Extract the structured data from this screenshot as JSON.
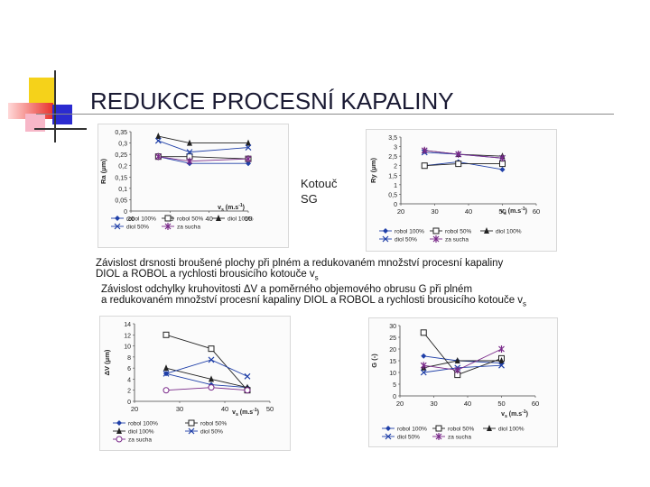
{
  "slide": {
    "title": "REDUKCE PROCESNÍ KAPALINY",
    "wheel_label_line1": "Kotouč",
    "wheel_label_line2": "SG",
    "caption1_line1": "Závislost drsnosti broušené plochy při plném a redukovaném množství procesní kapaliny",
    "caption1_line2_main": "DIOL a ROBOL a rychlosti brousicího kotouče v",
    "caption1_line2_sub": "s",
    "caption2_line1": "Závislost odchylky kruhovitosti ΔV a poměrného objemového obrusu G při plném",
    "caption2_line2_main": "a redukovaném množství procesní kapaliny DIOL a ROBOL a rychlosti brousicího kotouče v",
    "caption2_line2_sub": "s"
  },
  "colors": {
    "accent_yellow": "#f5d21a",
    "accent_red": "#e8322b",
    "accent_blue": "#2b2bd0",
    "accent_pink": "#f7b7c8",
    "series_blue": "#1f3fa8",
    "series_dark": "#222222",
    "series_purple": "#7a2a8a"
  },
  "chart_data": [
    {
      "type": "line",
      "ylabel": "Ra (μm)",
      "xlabel": "v",
      "xlabel_sub": "s",
      "xlabel_unit": " (m.s",
      "xlabel_sup": "-1",
      "xlabel_end": ")",
      "xlim": [
        20,
        50
      ],
      "ylim": [
        0,
        0.35
      ],
      "xticks": [
        "20",
        "30",
        "40",
        "50"
      ],
      "yticks": [
        "0",
        "0,05",
        "0,1",
        "0,15",
        "0,2",
        "0,25",
        "0,3",
        "0,35"
      ],
      "legend": [
        "robol 100%",
        "robol 50%",
        "diol 100%",
        "diol 50%",
        "za sucha"
      ],
      "series": [
        {
          "name": "robol 100%",
          "marker": "diamond",
          "x": [
            27,
            35,
            50
          ],
          "y": [
            0.24,
            0.21,
            0.21
          ]
        },
        {
          "name": "robol 50%",
          "marker": "square",
          "x": [
            27,
            35,
            50
          ],
          "y": [
            0.24,
            0.24,
            0.23
          ]
        },
        {
          "name": "diol 100%",
          "marker": "triangle",
          "x": [
            27,
            35,
            50
          ],
          "y": [
            0.33,
            0.3,
            0.3
          ]
        },
        {
          "name": "diol 50%",
          "marker": "x",
          "x": [
            27,
            35,
            50
          ],
          "y": [
            0.31,
            0.26,
            0.28
          ]
        },
        {
          "name": "za sucha",
          "marker": "star",
          "x": [
            27,
            35,
            50
          ],
          "y": [
            0.24,
            0.22,
            0.23
          ]
        }
      ]
    },
    {
      "type": "line",
      "ylabel": "Ry (μm)",
      "xlabel": "v",
      "xlabel_sub": "s",
      "xlabel_unit": " (m.s",
      "xlabel_sup": "-1",
      "xlabel_end": ")",
      "xlim": [
        20,
        60
      ],
      "ylim": [
        0,
        3.5
      ],
      "xticks": [
        "20",
        "30",
        "40",
        "50",
        "60"
      ],
      "yticks": [
        "0",
        "0,5",
        "1",
        "1,5",
        "2",
        "2,5",
        "3",
        "3,5"
      ],
      "legend": [
        "robol 100%",
        "robol 50%",
        "diol 100%",
        "diol 50%",
        "za sucha"
      ],
      "series": [
        {
          "name": "robol 100%",
          "marker": "diamond",
          "x": [
            27,
            37,
            50
          ],
          "y": [
            2.0,
            2.2,
            1.8
          ]
        },
        {
          "name": "robol 50%",
          "marker": "square",
          "x": [
            27,
            37,
            50
          ],
          "y": [
            2.0,
            2.1,
            2.1
          ]
        },
        {
          "name": "diol 100%",
          "marker": "triangle",
          "x": [
            27,
            37,
            50
          ],
          "y": [
            2.8,
            2.6,
            2.5
          ]
        },
        {
          "name": "diol 50%",
          "marker": "x",
          "x": [
            27,
            37,
            50
          ],
          "y": [
            2.7,
            2.6,
            2.4
          ]
        },
        {
          "name": "za sucha",
          "marker": "star",
          "x": [
            27,
            37,
            50
          ],
          "y": [
            2.8,
            2.6,
            2.4
          ]
        }
      ]
    },
    {
      "type": "line",
      "ylabel": "ΔV (μm)",
      "xlabel": "v",
      "xlabel_sub": "s",
      "xlabel_unit": " (m.s",
      "xlabel_sup": "-1",
      "xlabel_end": ")",
      "xlim": [
        20,
        50
      ],
      "ylim": [
        0,
        14
      ],
      "xticks": [
        "20",
        "30",
        "40",
        "50"
      ],
      "yticks": [
        "0",
        "2",
        "4",
        "6",
        "8",
        "10",
        "12",
        "14"
      ],
      "legend": [
        "robol 100%",
        "robol 50%",
        "diol 100%",
        "diol 50%",
        "za sucha"
      ],
      "series": [
        {
          "name": "robol 100%",
          "marker": "diamond",
          "x": [
            27,
            37,
            45
          ],
          "y": [
            5.0,
            3.0,
            2.5
          ]
        },
        {
          "name": "robol 50%",
          "marker": "square",
          "x": [
            27,
            37,
            45
          ],
          "y": [
            12.0,
            9.5,
            2.0
          ]
        },
        {
          "name": "diol 100%",
          "marker": "triangle",
          "x": [
            27,
            37,
            45
          ],
          "y": [
            6.0,
            4.0,
            2.5
          ]
        },
        {
          "name": "diol 50%",
          "marker": "x",
          "x": [
            27,
            37,
            45
          ],
          "y": [
            5.0,
            7.5,
            4.5
          ]
        },
        {
          "name": "za sucha",
          "marker": "circle",
          "x": [
            27,
            37,
            45
          ],
          "y": [
            2.0,
            2.5,
            2.0
          ]
        }
      ]
    },
    {
      "type": "line",
      "ylabel": "G (-)",
      "xlabel": "v",
      "xlabel_sub": "s",
      "xlabel_unit": " (m.s",
      "xlabel_sup": "-1",
      "xlabel_end": ")",
      "xlim": [
        20,
        60
      ],
      "ylim": [
        0,
        30
      ],
      "xticks": [
        "20",
        "30",
        "40",
        "50",
        "60"
      ],
      "yticks": [
        "0",
        "5",
        "10",
        "15",
        "20",
        "25",
        "30"
      ],
      "legend": [
        "robol 100%",
        "robol 50%",
        "diol 100%",
        "diol 50%",
        "za sucha"
      ],
      "series": [
        {
          "name": "robol 100%",
          "marker": "diamond",
          "x": [
            27,
            37,
            50
          ],
          "y": [
            17,
            15,
            14
          ]
        },
        {
          "name": "robol 50%",
          "marker": "square",
          "x": [
            27,
            37,
            50
          ],
          "y": [
            27,
            9,
            16
          ]
        },
        {
          "name": "diol 100%",
          "marker": "triangle",
          "x": [
            27,
            37,
            50
          ],
          "y": [
            12,
            15,
            15
          ]
        },
        {
          "name": "diol 50%",
          "marker": "x",
          "x": [
            27,
            37,
            50
          ],
          "y": [
            10,
            12,
            13
          ]
        },
        {
          "name": "za sucha",
          "marker": "star",
          "x": [
            27,
            37,
            50
          ],
          "y": [
            13,
            11,
            20
          ]
        }
      ]
    }
  ]
}
